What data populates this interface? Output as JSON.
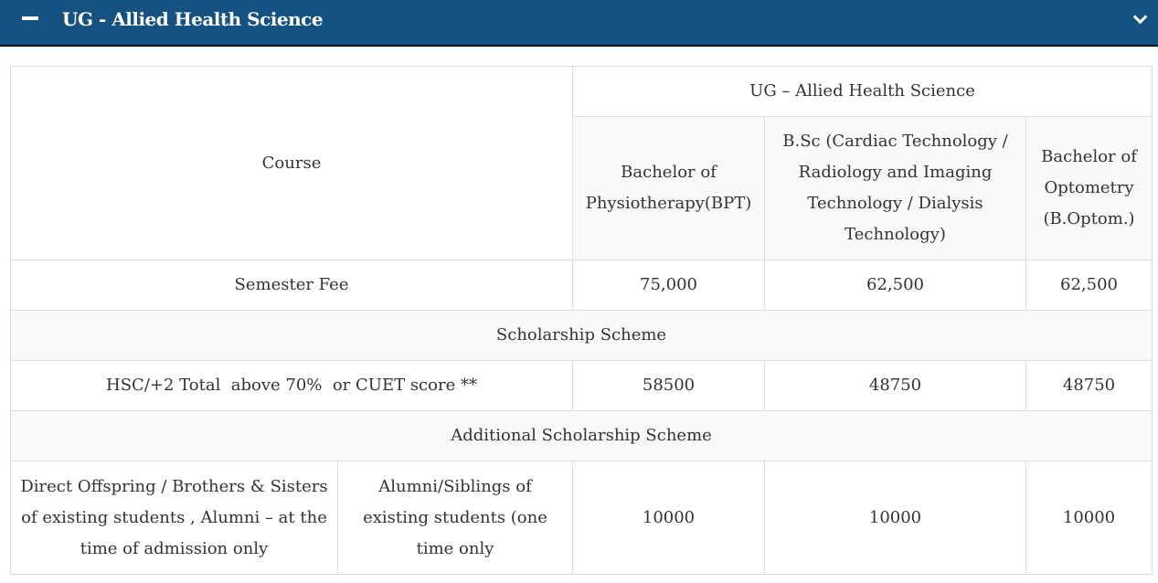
{
  "header": {
    "title": "UG - Allied Health Science",
    "collapse_icon": "minus-icon",
    "expand_icon": "chevron-down-icon",
    "bg_color": "#155282"
  },
  "table": {
    "course_label": "Course",
    "group_label": "UG – Allied Health Science",
    "columns": [
      "Bachelor of Physiotherapy(BPT)",
      "B.Sc (Cardiac Technology / Radiology and Imaging Technology / Dialysis Technology)",
      "Bachelor of Optometry (B.Optom.)"
    ],
    "semester_fee": {
      "label": "Semester Fee",
      "values": [
        "75,000",
        "62,500",
        "62,500"
      ]
    },
    "scholarship_heading": "Scholarship Scheme",
    "scholarship": {
      "label": "HSC/+2 Total  above 70%  or CUET score **",
      "values": [
        "58500",
        "48750",
        "48750"
      ]
    },
    "additional_heading": "Additional Scholarship Scheme",
    "additional": {
      "label1": "Direct Offspring / Brothers & Sisters of existing students , Alumni – at the time of admission only",
      "label2": "Alumni/Siblings of existing students (one time only",
      "values": [
        "10000",
        "10000",
        "10000"
      ]
    }
  }
}
